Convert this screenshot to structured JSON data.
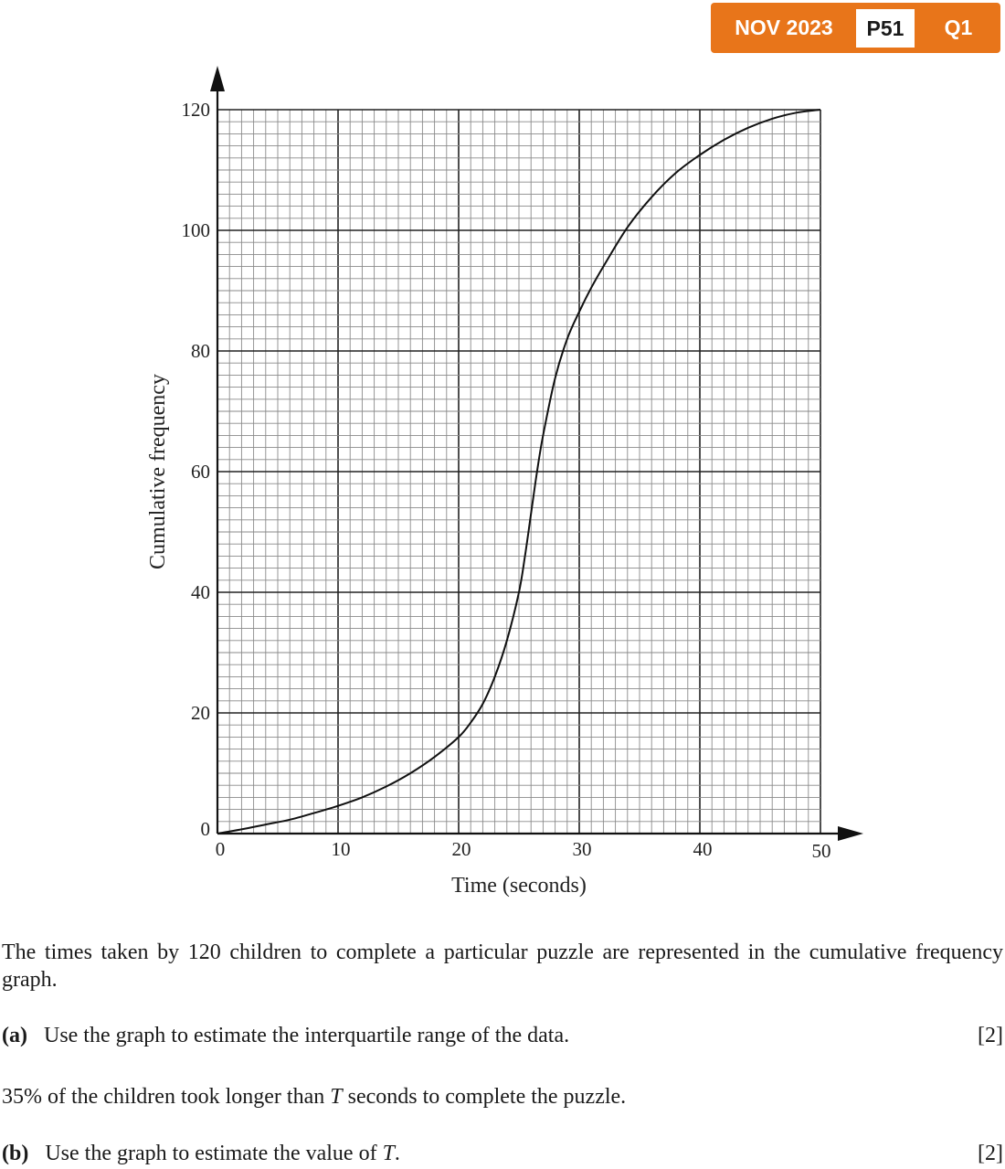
{
  "badge": {
    "session": "NOV 2023",
    "paper": "P51",
    "question": "Q1",
    "color": "#e8751a"
  },
  "chart_data": {
    "type": "line",
    "title": "",
    "xlabel": "Time (seconds)",
    "ylabel": "Cumulative frequency",
    "xlim": [
      0,
      50
    ],
    "ylim": [
      0,
      120
    ],
    "x_ticks": [
      0,
      10,
      20,
      30,
      40,
      50
    ],
    "y_ticks": [
      0,
      20,
      40,
      60,
      80,
      100,
      120
    ],
    "grid": "on (major every 10 s / 20, minor every 1 s / 2)",
    "series": [
      {
        "name": "",
        "x": [
          0,
          2,
          4,
          6,
          8,
          10,
          12,
          14,
          16,
          18,
          20,
          21,
          22,
          23,
          24,
          25,
          25.5,
          26,
          26.5,
          27,
          28,
          29,
          30,
          31,
          32,
          34,
          36,
          38,
          40,
          42,
          44,
          46,
          48,
          50
        ],
        "y": [
          0,
          0.7,
          1.5,
          2.3,
          3.4,
          4.6,
          6.0,
          7.8,
          10.0,
          12.7,
          16.0,
          18.4,
          21.5,
          26.0,
          32.0,
          40.0,
          46.0,
          53.0,
          60.0,
          66.0,
          75.5,
          82.0,
          86.5,
          90.5,
          94.0,
          100.5,
          105.5,
          109.5,
          112.5,
          115.0,
          117.0,
          118.5,
          119.5,
          120
        ]
      }
    ]
  },
  "question": {
    "intro": "The times taken by 120 children to complete a particular puzzle are represented in the cumulative frequency graph.",
    "part_a": {
      "label": "(a)",
      "text": "Use the graph to estimate the interquartile range of the data.",
      "marks": "[2]"
    },
    "stem": {
      "before": "35% of the children took longer than ",
      "var": "T",
      "after": " seconds to complete the puzzle."
    },
    "part_b": {
      "label": "(b)",
      "before": "Use the graph to estimate the value of ",
      "var": "T",
      "after": ".",
      "marks": "[2]"
    }
  }
}
